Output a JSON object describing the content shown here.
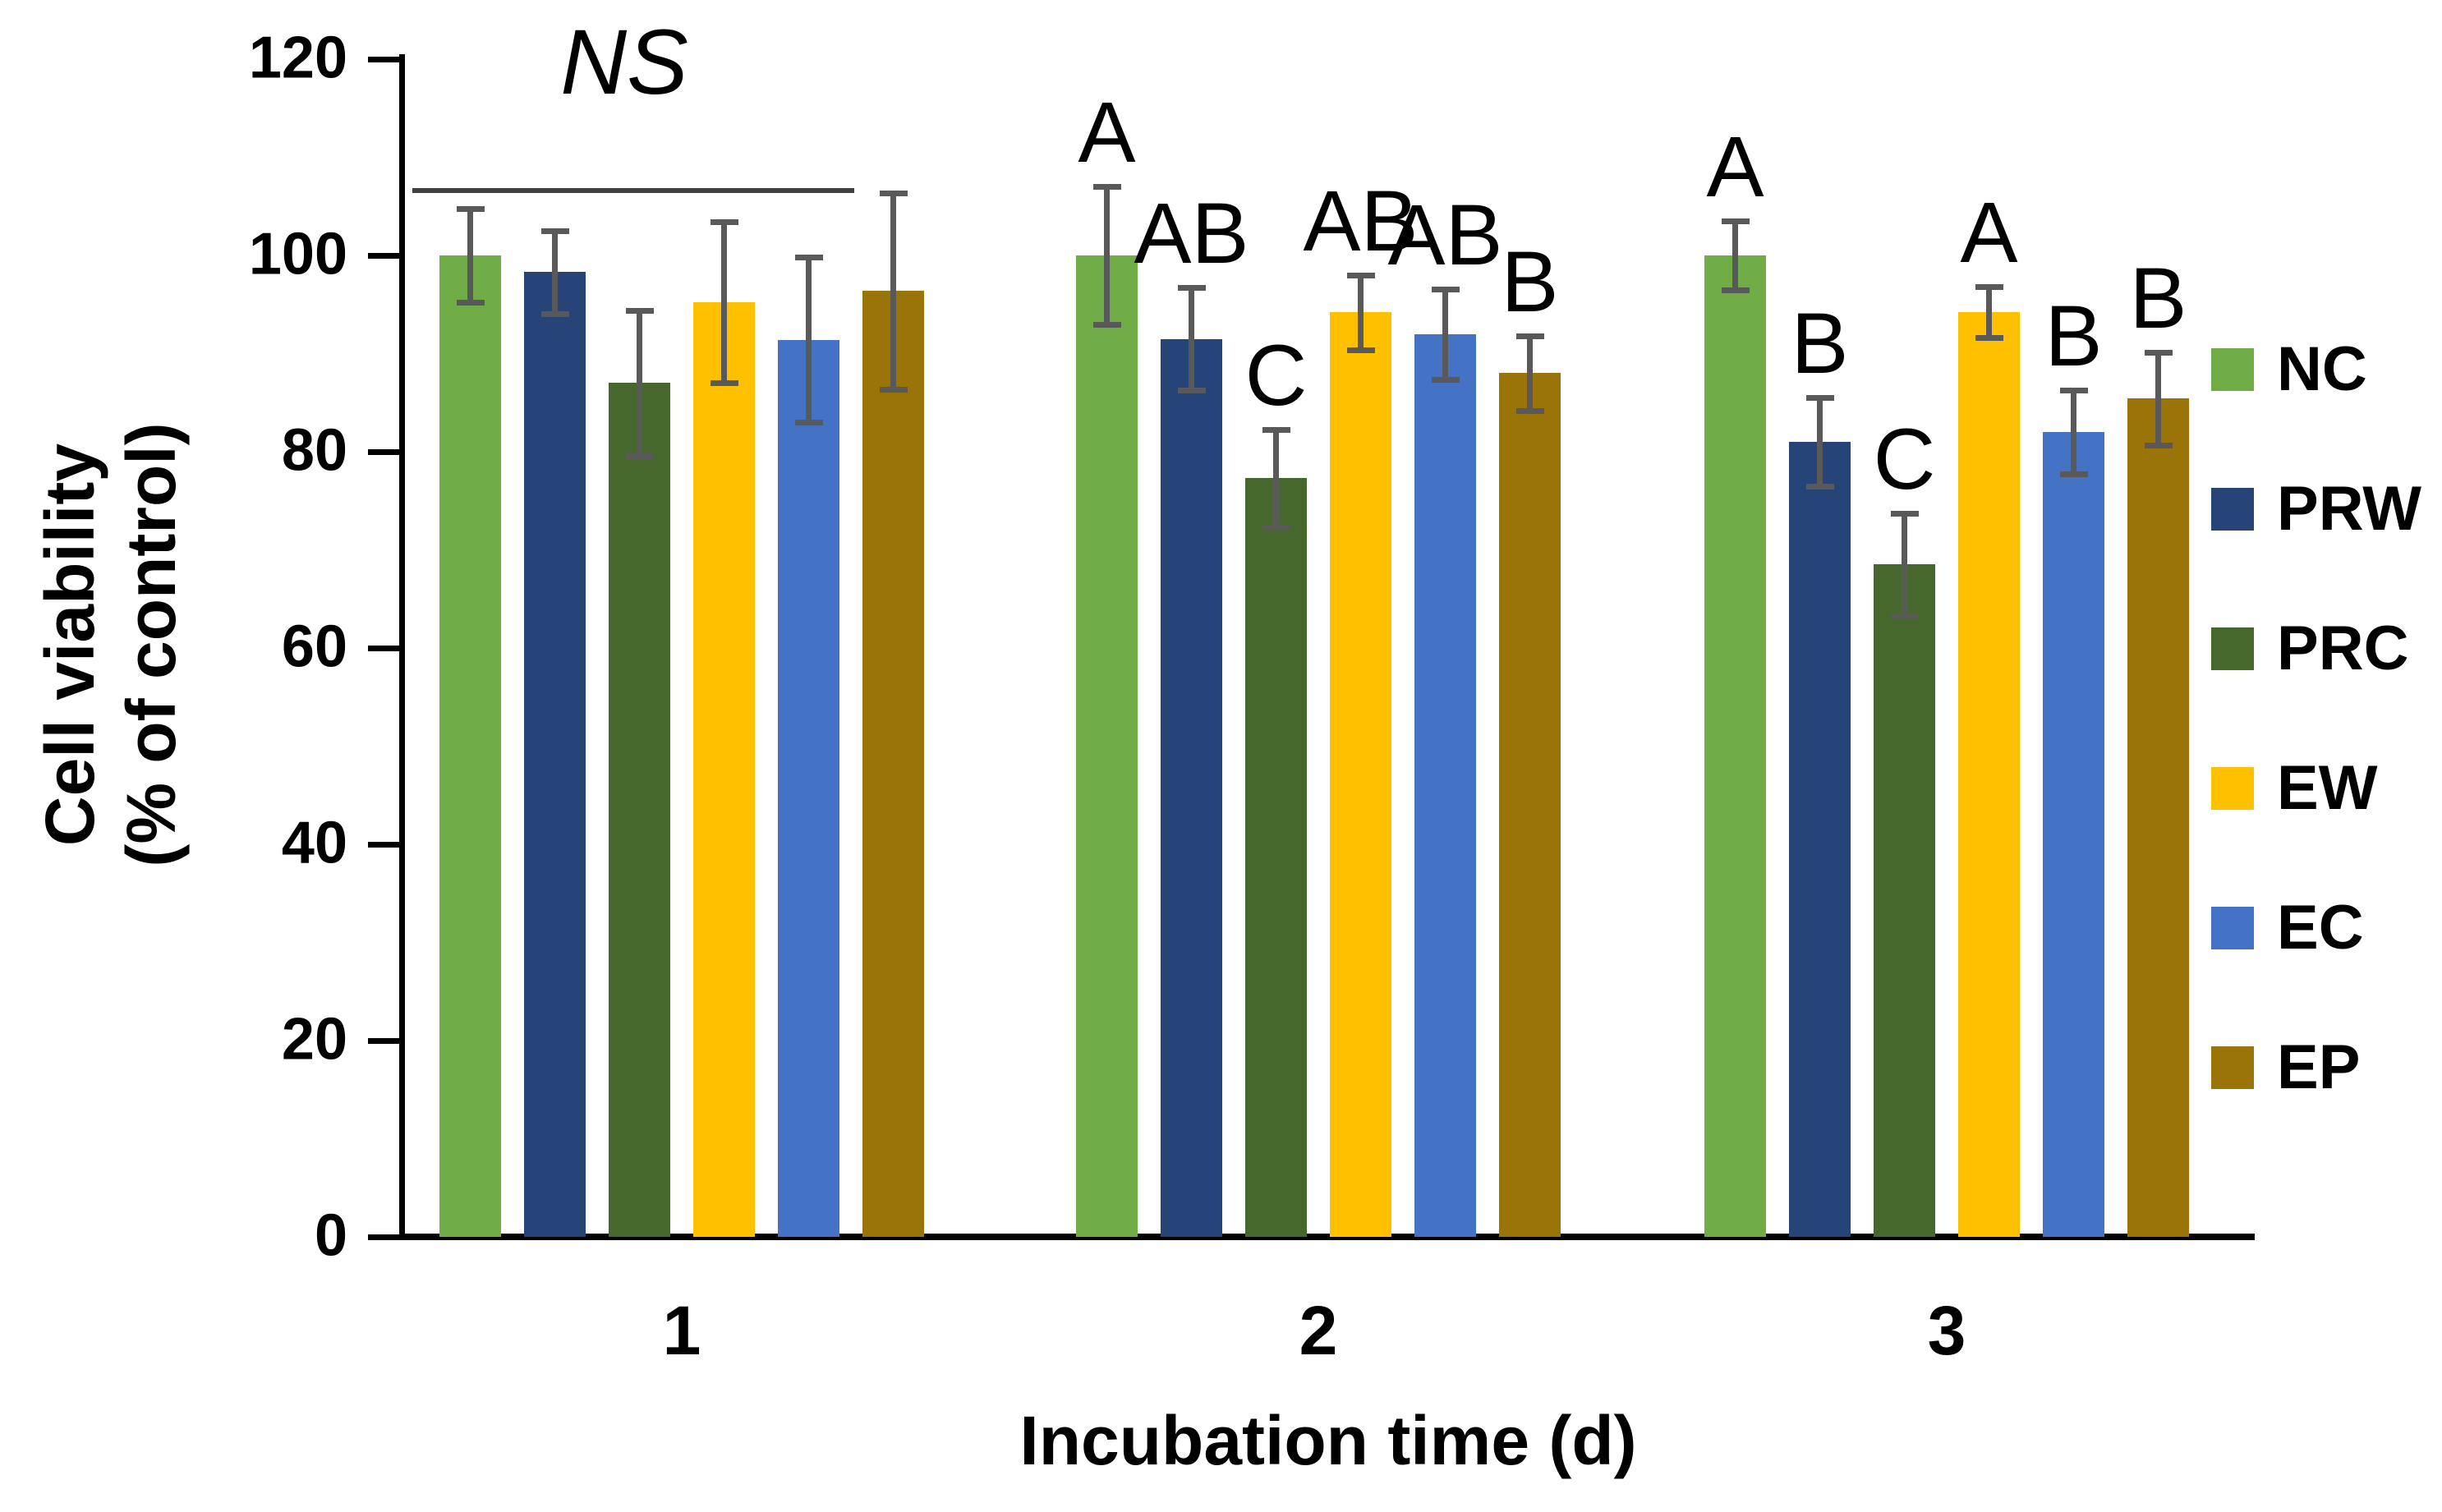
{
  "chart_data": {
    "type": "bar",
    "title": "",
    "xlabel": "Incubation time (d)",
    "ylabel_line1": "Cell viability",
    "ylabel_line2": "(% of control)",
    "categories": [
      "1",
      "2",
      "3"
    ],
    "ylim": [
      0,
      120
    ],
    "yticks": [
      0,
      20,
      40,
      60,
      80,
      100,
      120
    ],
    "grid": false,
    "legend_position": "right",
    "axis_color": "#000000",
    "error_bar_color": "#595959",
    "annotation": {
      "text": "NS",
      "target_group": "1",
      "style": "italic"
    },
    "series": [
      {
        "name": "NC",
        "color": "#70AD47",
        "values": [
          100.0,
          100.0,
          100.0
        ],
        "errors": [
          4.8,
          7.0,
          3.5
        ],
        "letters": [
          "",
          "A",
          "A"
        ]
      },
      {
        "name": "PRW",
        "color": "#264478",
        "values": [
          98.3,
          91.5,
          81.0
        ],
        "errors": [
          4.2,
          5.2,
          4.5
        ],
        "letters": [
          "",
          "AB",
          "B"
        ]
      },
      {
        "name": "PRC",
        "color": "#47682C",
        "values": [
          87.0,
          77.3,
          68.5
        ],
        "errors": [
          7.4,
          5.0,
          5.2
        ],
        "letters": [
          "",
          "C",
          "C"
        ]
      },
      {
        "name": "EW",
        "color": "#FFC000",
        "values": [
          95.2,
          94.2,
          94.2
        ],
        "errors": [
          8.2,
          3.8,
          2.6
        ],
        "letters": [
          "",
          "AB",
          "A"
        ]
      },
      {
        "name": "EC",
        "color": "#4472C4",
        "values": [
          91.4,
          92.0,
          82.0
        ],
        "errors": [
          8.4,
          4.6,
          4.3
        ],
        "letters": [
          "",
          "AB",
          "B"
        ]
      },
      {
        "name": "EP",
        "color": "#9A7409",
        "values": [
          96.4,
          88.0,
          85.4
        ],
        "errors": [
          10.0,
          3.8,
          4.7
        ],
        "letters": [
          "",
          "B",
          "B"
        ]
      }
    ]
  }
}
